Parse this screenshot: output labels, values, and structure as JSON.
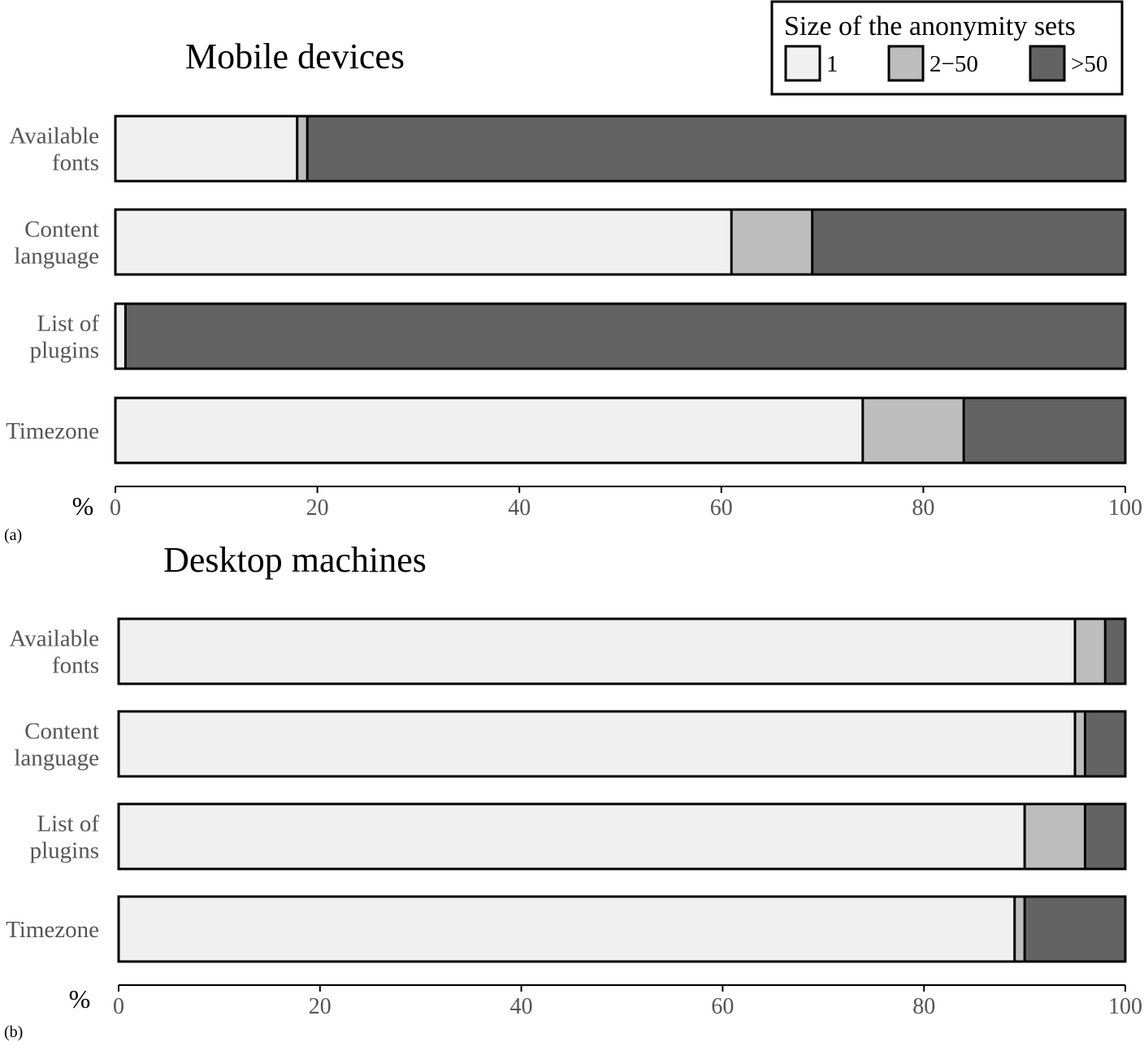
{
  "legend": {
    "title": "Size of the anonymity sets",
    "items": [
      {
        "label": "1",
        "color": "#f0f0f0"
      },
      {
        "label": "2−50",
        "color": "#bdbdbd"
      },
      {
        "label": ">50",
        "color": "#636363"
      }
    ]
  },
  "chart_data": [
    {
      "type": "bar",
      "orientation": "horizontal",
      "stacked": true,
      "panel_label": "(a)",
      "title": "Mobile devices",
      "xlabel": "%",
      "xlim": [
        0,
        100
      ],
      "xticks": [
        "0",
        "20",
        "40",
        "60",
        "80",
        "100"
      ],
      "categories": [
        "Available fonts",
        "Content language",
        "List of plugins",
        "Timezone"
      ],
      "series": [
        {
          "name": "1",
          "values": [
            18,
            61,
            1,
            74
          ]
        },
        {
          "name": "2−50",
          "values": [
            1,
            8,
            0,
            10
          ]
        },
        {
          "name": ">50",
          "values": [
            81,
            31,
            99,
            16
          ]
        }
      ]
    },
    {
      "type": "bar",
      "orientation": "horizontal",
      "stacked": true,
      "panel_label": "(b)",
      "title": "Desktop machines",
      "xlabel": "%",
      "xlim": [
        0,
        100
      ],
      "xticks": [
        "0",
        "20",
        "40",
        "60",
        "80",
        "100"
      ],
      "categories": [
        "Available fonts",
        "Content language",
        "List of plugins",
        "Timezone"
      ],
      "series": [
        {
          "name": "1",
          "values": [
            95,
            95,
            90,
            89
          ]
        },
        {
          "name": "2−50",
          "values": [
            3,
            1,
            6,
            1
          ]
        },
        {
          "name": ">50",
          "values": [
            2,
            4,
            4,
            10
          ]
        }
      ]
    }
  ]
}
